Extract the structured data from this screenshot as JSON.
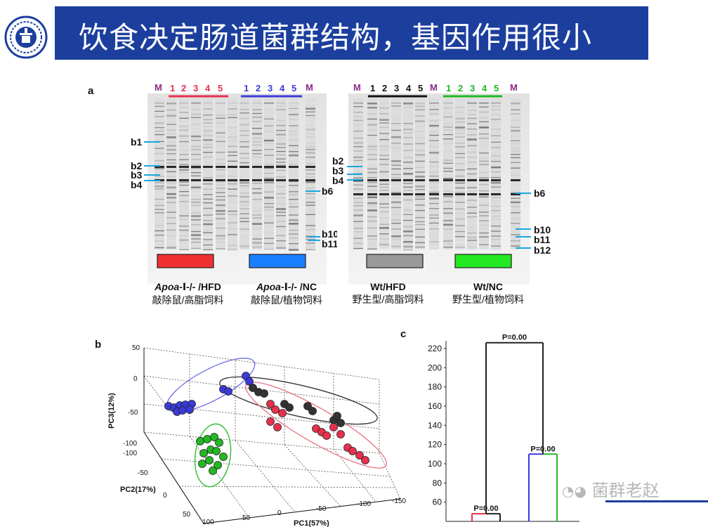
{
  "header": {
    "title": "饮食决定肠道菌群结构，基因作用很小"
  },
  "panels": {
    "a": "a",
    "b": "b",
    "c": "c",
    "gel_left": {
      "M": "M",
      "red_lanes": [
        "1",
        "2",
        "3",
        "4",
        "5"
      ],
      "blue_lanes": [
        "1",
        "2",
        "3",
        "4",
        "5"
      ],
      "bands": [
        "b1",
        "b2",
        "b3",
        "b4",
        "b6",
        "b10",
        "b11"
      ]
    },
    "gel_right": {
      "M": "M",
      "black_lanes": [
        "1",
        "2",
        "3",
        "4",
        "5"
      ],
      "green_lanes": [
        "1",
        "2",
        "3",
        "4",
        "5"
      ],
      "bands_left": [
        "b2",
        "b3",
        "b4"
      ],
      "bands_right": [
        "b6",
        "b10",
        "b11",
        "b12"
      ]
    }
  },
  "captions": [
    {
      "gene": "Apoa-",
      "rest": "Ⅰ-/- /HFD",
      "cn": "敲除鼠/高脂饲料"
    },
    {
      "gene": "Apoa-",
      "rest": "Ⅰ-/- /NC",
      "cn": "敲除鼠/植物饲料"
    },
    {
      "gene": "",
      "rest": "Wt/HFD",
      "cn": "野生型/高脂饲料"
    },
    {
      "gene": "",
      "rest": "Wt/NC",
      "cn": "野生型/植物饲料"
    }
  ],
  "pca": {
    "axes": {
      "pc1": "PC1(57%)",
      "pc2": "PC2(17%)",
      "pc3": "PC3(12%)"
    },
    "pc1_ticks": [
      "100",
      "50",
      "0",
      "-50",
      "-100",
      "-150"
    ],
    "pc2_ticks": [
      "-100",
      "-50",
      "0",
      "50"
    ],
    "pc3_ticks": [
      "0",
      "-50",
      "-100"
    ],
    "groups": [
      {
        "name": "Apoa-I-/- HFD",
        "color": "#e8304d"
      },
      {
        "name": "Apoa-I-/- NC",
        "color": "#3a3ad8"
      },
      {
        "name": "Wt HFD",
        "color": "#333333"
      },
      {
        "name": "Wt NC",
        "color": "#22b822"
      }
    ]
  },
  "chart_data": {
    "type": "dendrogram",
    "title": "",
    "ylim": [
      40,
      228
    ],
    "yticks": [
      "60",
      "80",
      "100",
      "120",
      "140",
      "160",
      "180",
      "200",
      "220"
    ],
    "nodes": [
      {
        "height": 48,
        "label": "P=0.00",
        "left_color": "#e8304d",
        "right_color": "#222222"
      },
      {
        "height": 110,
        "label": "P=0.00",
        "left_color": "#3a3ad8",
        "right_color": "#22b822"
      },
      {
        "height": 226,
        "label": "P=0.00",
        "left_color": "#222222",
        "right_color": "#222222"
      }
    ]
  },
  "watermark": {
    "text": "菌群老赵"
  }
}
